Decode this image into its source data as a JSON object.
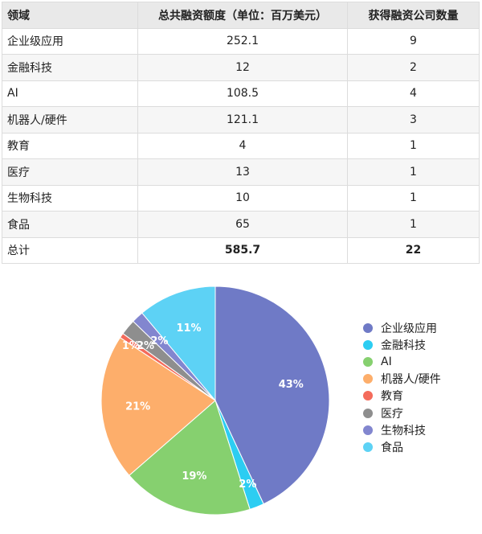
{
  "table": {
    "headers": [
      "领域",
      "总共融资额度（单位：百万美元）",
      "获得融资公司数量"
    ],
    "rows": [
      [
        "企业级应用",
        "252.1",
        "9"
      ],
      [
        "金融科技",
        "12",
        "2"
      ],
      [
        "AI",
        "108.5",
        "4"
      ],
      [
        "机器人/硬件",
        "121.1",
        "3"
      ],
      [
        "教育",
        "4",
        "1"
      ],
      [
        "医疗",
        "13",
        "1"
      ],
      [
        "生物科技",
        "10",
        "1"
      ],
      [
        "食品",
        "65",
        "1"
      ]
    ],
    "total": [
      "总计",
      "585.7",
      "22"
    ]
  },
  "chart_data": {
    "type": "pie",
    "categories": [
      "企业级应用",
      "金融科技",
      "AI",
      "机器人/硬件",
      "教育",
      "医疗",
      "生物科技",
      "食品"
    ],
    "values": [
      252.1,
      12,
      108.5,
      121.1,
      4,
      13,
      10,
      65
    ],
    "labels": [
      "43%",
      "2%",
      "19%",
      "21%",
      "1%",
      "2%",
      "2%",
      "11%"
    ],
    "colors": [
      "#6f7ac6",
      "#2ccdf2",
      "#86d06f",
      "#fdae6b",
      "#f46b5b",
      "#8e8e8e",
      "#8286cf",
      "#5dd2f5"
    ],
    "legend": "right"
  }
}
